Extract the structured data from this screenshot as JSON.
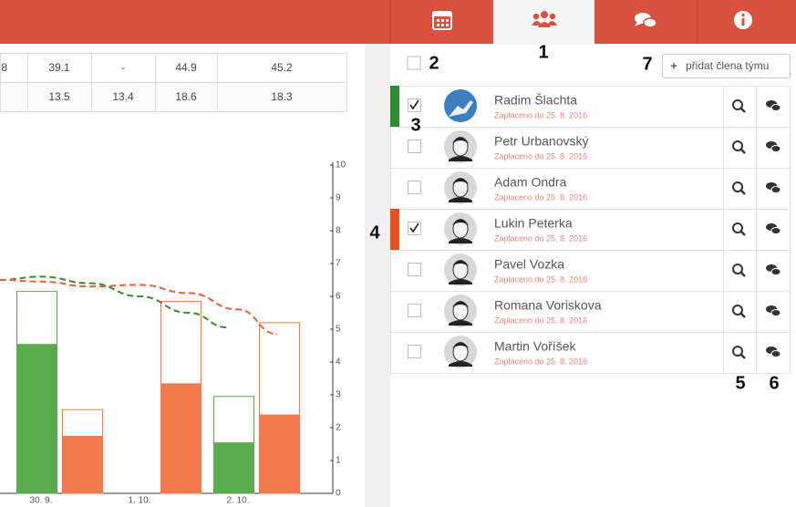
{
  "table": {
    "rows": [
      [
        "8",
        "39.1",
        "-",
        "44.9",
        "45.2"
      ],
      [
        null,
        "13.5",
        "13.4",
        "18.6",
        "18.3"
      ]
    ]
  },
  "chart": {
    "type": "bar",
    "categories": [
      "30. 9.",
      "1. 10.",
      "2. 10."
    ],
    "ylim": [
      0,
      10
    ],
    "yticks": [
      0,
      1,
      2,
      3,
      4,
      5,
      6,
      7,
      8,
      9,
      10
    ],
    "xlim": [
      -0.42,
      3.2
    ],
    "bars": [
      {
        "color": "#5aaa4e",
        "target": [
          6.15,
          null,
          2.95
        ],
        "values": [
          4.55,
          null,
          1.55
        ]
      },
      {
        "color": "#f07a4b",
        "target": [
          2.55,
          5.85,
          5.2
        ],
        "values": [
          1.75,
          3.35,
          2.4
        ]
      }
    ],
    "lines": [
      {
        "color": "#3a8a2a",
        "x": [
          -0.42,
          0,
          0.5,
          1,
          1.5,
          1.9
        ],
        "values": [
          6.5,
          6.6,
          6.4,
          6.0,
          5.5,
          5.05
        ]
      },
      {
        "color": "#e8603a",
        "x": [
          -0.42,
          0,
          0.5,
          1,
          1.5,
          2,
          2.4
        ],
        "values": [
          6.5,
          6.45,
          6.3,
          6.35,
          6.1,
          5.6,
          4.85
        ]
      }
    ]
  },
  "add_button": "přidat člena týmu",
  "members": [
    {
      "name": "Radim Šlachta",
      "paid": "Zaplaceno do 25. 8. 2016",
      "checked": true,
      "status": "#2e8b2e"
    },
    {
      "name": "Petr Urbanovský",
      "paid": "Zaplaceno do 25. 8. 2016",
      "checked": false,
      "status": null
    },
    {
      "name": "Adam Ondra",
      "paid": "Zaplaceno do 25. 8. 2016",
      "checked": false,
      "status": null
    },
    {
      "name": "Lukin Peterka",
      "paid": "Zaplaceno do 25. 8. 2016",
      "checked": true,
      "status": "#e8501f"
    },
    {
      "name": "Pavel Vozka",
      "paid": "Zaplaceno do 25. 8. 2016",
      "checked": false,
      "status": null
    },
    {
      "name": "Romana Voriskova",
      "paid": "Zaplaceno do 25. 8. 2016",
      "checked": false,
      "status": null
    },
    {
      "name": "Martin Voříšek",
      "paid": "Zaplaceno do 25. 8. 2016",
      "checked": false,
      "status": null
    }
  ],
  "annotations": [
    "1",
    "2",
    "3",
    "4",
    "5",
    "6",
    "7"
  ]
}
